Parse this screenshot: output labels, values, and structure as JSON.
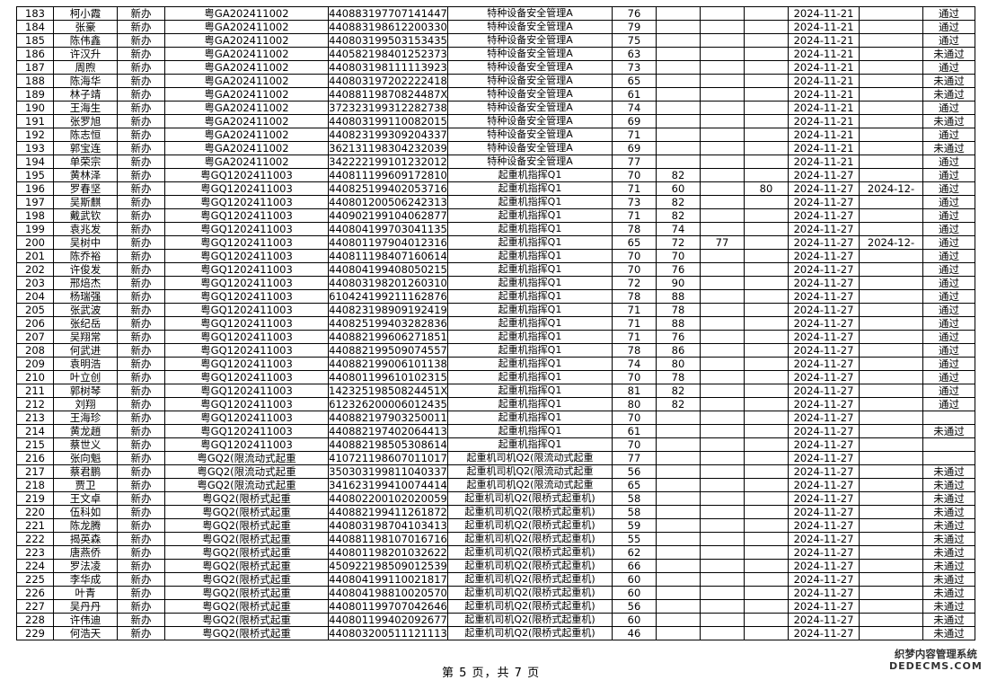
{
  "rows": [
    [
      "183",
      "柯小霞",
      "新办",
      "粤GA202411002",
      "440883197707141447",
      "特种设备安全管理A",
      "76",
      "",
      "",
      "",
      "2024-11-21",
      "",
      "通过"
    ],
    [
      "184",
      "张豪",
      "新办",
      "粤GA202411002",
      "440883198612200330",
      "特种设备安全管理A",
      "79",
      "",
      "",
      "",
      "2024-11-21",
      "",
      "通过"
    ],
    [
      "185",
      "陈伟鑫",
      "新办",
      "粤GA202411002",
      "440803199503153435",
      "特种设备安全管理A",
      "75",
      "",
      "",
      "",
      "2024-11-21",
      "",
      "通过"
    ],
    [
      "186",
      "许汉升",
      "新办",
      "粤GA202411002",
      "440582198401252373",
      "特种设备安全管理A",
      "63",
      "",
      "",
      "",
      "2024-11-21",
      "",
      "未通过"
    ],
    [
      "187",
      "周煦",
      "新办",
      "粤GA202411002",
      "440803198111113923",
      "特种设备安全管理A",
      "73",
      "",
      "",
      "",
      "2024-11-21",
      "",
      "通过"
    ],
    [
      "188",
      "陈海华",
      "新办",
      "粤GA202411002",
      "440803197202222418",
      "特种设备安全管理A",
      "65",
      "",
      "",
      "",
      "2024-11-21",
      "",
      "未通过"
    ],
    [
      "189",
      "林子靖",
      "新办",
      "粤GA202411002",
      "44088119870824487X",
      "特种设备安全管理A",
      "61",
      "",
      "",
      "",
      "2024-11-21",
      "",
      "未通过"
    ],
    [
      "190",
      "王海生",
      "新办",
      "粤GA202411002",
      "372323199312282738",
      "特种设备安全管理A",
      "74",
      "",
      "",
      "",
      "2024-11-21",
      "",
      "通过"
    ],
    [
      "191",
      "张罗旭",
      "新办",
      "粤GA202411002",
      "440803199110082015",
      "特种设备安全管理A",
      "69",
      "",
      "",
      "",
      "2024-11-21",
      "",
      "未通过"
    ],
    [
      "192",
      "陈志恒",
      "新办",
      "粤GA202411002",
      "440823199309204337",
      "特种设备安全管理A",
      "71",
      "",
      "",
      "",
      "2024-11-21",
      "",
      "通过"
    ],
    [
      "193",
      "郭宝连",
      "新办",
      "粤GA202411002",
      "362131198304232039",
      "特种设备安全管理A",
      "69",
      "",
      "",
      "",
      "2024-11-21",
      "",
      "未通过"
    ],
    [
      "194",
      "单荣宗",
      "新办",
      "粤GA202411002",
      "342222199101232012",
      "特种设备安全管理A",
      "77",
      "",
      "",
      "",
      "2024-11-21",
      "",
      "通过"
    ],
    [
      "195",
      "黄林泽",
      "新办",
      "粤GQ1202411003",
      "440811199609172810",
      "起重机指挥Q1",
      "70",
      "82",
      "",
      "",
      "2024-11-27",
      "",
      "通过"
    ],
    [
      "196",
      "罗春坚",
      "新办",
      "粤GQ1202411003",
      "440825199402053716",
      "起重机指挥Q1",
      "71",
      "60",
      "",
      "80",
      "2024-11-27",
      "2024-12-",
      "通过"
    ],
    [
      "197",
      "吴斯麒",
      "新办",
      "粤GQ1202411003",
      "440801200506242313",
      "起重机指挥Q1",
      "73",
      "82",
      "",
      "",
      "2024-11-27",
      "",
      "通过"
    ],
    [
      "198",
      "戴武钦",
      "新办",
      "粤GQ1202411003",
      "440902199104062877",
      "起重机指挥Q1",
      "71",
      "82",
      "",
      "",
      "2024-11-27",
      "",
      "通过"
    ],
    [
      "199",
      "袁兆发",
      "新办",
      "粤GQ1202411003",
      "440804199703041135",
      "起重机指挥Q1",
      "78",
      "74",
      "",
      "",
      "2024-11-27",
      "",
      "通过"
    ],
    [
      "200",
      "吴树中",
      "新办",
      "粤GQ1202411003",
      "440801197904012316",
      "起重机指挥Q1",
      "65",
      "72",
      "77",
      "",
      "2024-11-27",
      "2024-12-",
      "通过"
    ],
    [
      "201",
      "陈乔裕",
      "新办",
      "粤GQ1202411003",
      "440811198407160614",
      "起重机指挥Q1",
      "70",
      "70",
      "",
      "",
      "2024-11-27",
      "",
      "通过"
    ],
    [
      "202",
      "许俊发",
      "新办",
      "粤GQ1202411003",
      "440804199408050215",
      "起重机指挥Q1",
      "70",
      "76",
      "",
      "",
      "2024-11-27",
      "",
      "通过"
    ],
    [
      "203",
      "邢焙杰",
      "新办",
      "粤GQ1202411003",
      "440803198201260310",
      "起重机指挥Q1",
      "72",
      "90",
      "",
      "",
      "2024-11-27",
      "",
      "通过"
    ],
    [
      "204",
      "杨瑞强",
      "新办",
      "粤GQ1202411003",
      "610424199211162876",
      "起重机指挥Q1",
      "78",
      "88",
      "",
      "",
      "2024-11-27",
      "",
      "通过"
    ],
    [
      "205",
      "张武波",
      "新办",
      "粤GQ1202411003",
      "440823198909192419",
      "起重机指挥Q1",
      "71",
      "78",
      "",
      "",
      "2024-11-27",
      "",
      "通过"
    ],
    [
      "206",
      "张纪岳",
      "新办",
      "粤GQ1202411003",
      "440825199403282836",
      "起重机指挥Q1",
      "71",
      "88",
      "",
      "",
      "2024-11-27",
      "",
      "通过"
    ],
    [
      "207",
      "吴翔常",
      "新办",
      "粤GQ1202411003",
      "440882199606271851",
      "起重机指挥Q1",
      "71",
      "76",
      "",
      "",
      "2024-11-27",
      "",
      "通过"
    ],
    [
      "208",
      "何武进",
      "新办",
      "粤GQ1202411003",
      "440882199509074557",
      "起重机指挥Q1",
      "78",
      "86",
      "",
      "",
      "2024-11-27",
      "",
      "通过"
    ],
    [
      "209",
      "袁明浩",
      "新办",
      "粤GQ1202411003",
      "440882199006101138",
      "起重机指挥Q1",
      "74",
      "80",
      "",
      "",
      "2024-11-27",
      "",
      "通过"
    ],
    [
      "210",
      "叶立创",
      "新办",
      "粤GQ1202411003",
      "440801199610102315",
      "起重机指挥Q1",
      "70",
      "78",
      "",
      "",
      "2024-11-27",
      "",
      "通过"
    ],
    [
      "211",
      "郭树琴",
      "新办",
      "粤GQ1202411003",
      "14232519850824451X",
      "起重机指挥Q1",
      "81",
      "82",
      "",
      "",
      "2024-11-27",
      "",
      "通过"
    ],
    [
      "212",
      "刘翔",
      "新办",
      "粤GQ1202411003",
      "612326200006012435",
      "起重机指挥Q1",
      "80",
      "82",
      "",
      "",
      "2024-11-27",
      "",
      "通过"
    ],
    [
      "213",
      "王海珍",
      "新办",
      "粤GQ1202411003",
      "440882197903250011",
      "起重机指挥Q1",
      "70",
      "",
      "",
      "",
      "2024-11-27",
      "",
      ""
    ],
    [
      "214",
      "黄龙趙",
      "新办",
      "粤GQ1202411003",
      "440882197402064413",
      "起重机指挥Q1",
      "61",
      "",
      "",
      "",
      "2024-11-27",
      "",
      "未通过"
    ],
    [
      "215",
      "蔡世义",
      "新办",
      "粤GQ1202411003",
      "440882198505308614",
      "起重机指挥Q1",
      "70",
      "",
      "",
      "",
      "2024-11-27",
      "",
      ""
    ],
    [
      "216",
      "张向魁",
      "新办",
      "粤GQ2(限流动式起重",
      "410721198607011017",
      "起重机司机Q2(限流动式起重",
      "77",
      "",
      "",
      "",
      "2024-11-27",
      "",
      ""
    ],
    [
      "217",
      "蔡君鹏",
      "新办",
      "粤GQ2(限流动式起重",
      "350303199811040337",
      "起重机司机Q2(限流动式起重",
      "56",
      "",
      "",
      "",
      "2024-11-27",
      "",
      "未通过"
    ],
    [
      "218",
      "贾卫",
      "新办",
      "粤GQ2(限流动式起重",
      "341623199410074414",
      "起重机司机Q2(限流动式起重",
      "65",
      "",
      "",
      "",
      "2024-11-27",
      "",
      "未通过"
    ],
    [
      "219",
      "王文卓",
      "新办",
      "粤GQ2(限桥式起重",
      "440802200102020059",
      "起重机司机Q2(限桥式起重机)",
      "58",
      "",
      "",
      "",
      "2024-11-27",
      "",
      "未通过"
    ],
    [
      "220",
      "伍科如",
      "新办",
      "粤GQ2(限桥式起重",
      "440882199411261872",
      "起重机司机Q2(限桥式起重机)",
      "58",
      "",
      "",
      "",
      "2024-11-27",
      "",
      "未通过"
    ],
    [
      "221",
      "陈龙腾",
      "新办",
      "粤GQ2(限桥式起重",
      "440803198704103413",
      "起重机司机Q2(限桥式起重机)",
      "59",
      "",
      "",
      "",
      "2024-11-27",
      "",
      "未通过"
    ],
    [
      "222",
      "揭英森",
      "新办",
      "粤GQ2(限桥式起重",
      "440881198107016716",
      "起重机司机Q2(限桥式起重机)",
      "55",
      "",
      "",
      "",
      "2024-11-27",
      "",
      "未通过"
    ],
    [
      "223",
      "唐燕侨",
      "新办",
      "粤GQ2(限桥式起重",
      "440801198201032622",
      "起重机司机Q2(限桥式起重机)",
      "62",
      "",
      "",
      "",
      "2024-11-27",
      "",
      "未通过"
    ],
    [
      "224",
      "罗法凌",
      "新办",
      "粤GQ2(限桥式起重",
      "450922198509012539",
      "起重机司机Q2(限桥式起重机)",
      "66",
      "",
      "",
      "",
      "2024-11-27",
      "",
      "未通过"
    ],
    [
      "225",
      "李华成",
      "新办",
      "粤GQ2(限桥式起重",
      "440804199110021817",
      "起重机司机Q2(限桥式起重机)",
      "60",
      "",
      "",
      "",
      "2024-11-27",
      "",
      "未通过"
    ],
    [
      "226",
      "叶青",
      "新办",
      "粤GQ2(限桥式起重",
      "440804198810020570",
      "起重机司机Q2(限桥式起重机)",
      "60",
      "",
      "",
      "",
      "2024-11-27",
      "",
      "未通过"
    ],
    [
      "227",
      "吴丹丹",
      "新办",
      "粤GQ2(限桥式起重",
      "440801199707042646",
      "起重机司机Q2(限桥式起重机)",
      "56",
      "",
      "",
      "",
      "2024-11-27",
      "",
      "未通过"
    ],
    [
      "228",
      "许伟迪",
      "新办",
      "粤GQ2(限桥式起重",
      "440801199402092677",
      "起重机司机Q2(限桥式起重机)",
      "60",
      "",
      "",
      "",
      "2024-11-27",
      "",
      "未通过"
    ],
    [
      "229",
      "何浩天",
      "新办",
      "粤GQ2(限桥式起重",
      "440803200511121113",
      "起重机司机Q2(限桥式起重机)",
      "46",
      "",
      "",
      "",
      "2024-11-27",
      "",
      "未通过"
    ]
  ],
  "footer": {
    "page_label": "第 5 页，共 7 页"
  },
  "watermark": {
    "line1": "织梦内容管理系统",
    "line2": "DEDECMS.COM"
  }
}
